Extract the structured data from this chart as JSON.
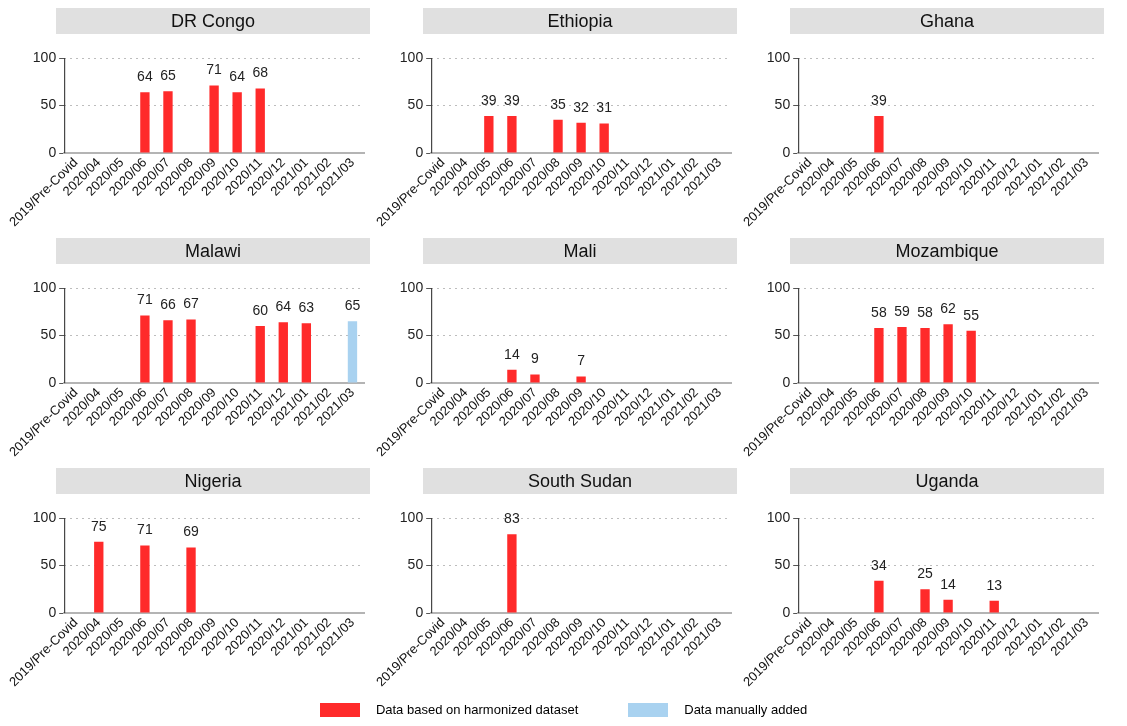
{
  "chart_data": [
    {
      "type": "bar",
      "title": "DR Congo",
      "categories": [
        "2019/Pre-Covid",
        "2020/04",
        "2020/05",
        "2020/06",
        "2020/07",
        "2020/08",
        "2020/09",
        "2020/10",
        "2020/11",
        "2020/12",
        "2021/01",
        "2021/02",
        "2021/03"
      ],
      "ylim": [
        0,
        100
      ],
      "yticks": [
        0,
        50,
        100
      ],
      "grid": "y",
      "data_labels": true,
      "series": [
        {
          "color": "#ff2a2a",
          "values": [
            null,
            null,
            null,
            64,
            65,
            null,
            71,
            64,
            68,
            null,
            null,
            null,
            null
          ]
        }
      ]
    },
    {
      "type": "bar",
      "title": "Ethiopia",
      "categories": [
        "2019/Pre-Covid",
        "2020/04",
        "2020/05",
        "2020/06",
        "2020/07",
        "2020/08",
        "2020/09",
        "2020/10",
        "2020/11",
        "2020/12",
        "2021/01",
        "2021/02",
        "2021/03"
      ],
      "ylim": [
        0,
        100
      ],
      "yticks": [
        0,
        50,
        100
      ],
      "grid": "y",
      "data_labels": true,
      "series": [
        {
          "color": "#ff2a2a",
          "values": [
            null,
            null,
            39,
            39,
            null,
            35,
            32,
            31,
            null,
            null,
            null,
            null,
            null
          ]
        }
      ]
    },
    {
      "type": "bar",
      "title": "Ghana",
      "categories": [
        "2019/Pre-Covid",
        "2020/04",
        "2020/05",
        "2020/06",
        "2020/07",
        "2020/08",
        "2020/09",
        "2020/10",
        "2020/11",
        "2020/12",
        "2021/01",
        "2021/02",
        "2021/03"
      ],
      "ylim": [
        0,
        100
      ],
      "yticks": [
        0,
        50,
        100
      ],
      "grid": "y",
      "data_labels": true,
      "series": [
        {
          "color": "#ff2a2a",
          "values": [
            null,
            null,
            null,
            39,
            null,
            null,
            null,
            null,
            null,
            null,
            null,
            null,
            null
          ]
        }
      ]
    },
    {
      "type": "bar",
      "title": "Malawi",
      "categories": [
        "2019/Pre-Covid",
        "2020/04",
        "2020/05",
        "2020/06",
        "2020/07",
        "2020/08",
        "2020/09",
        "2020/10",
        "2020/11",
        "2020/12",
        "2021/01",
        "2021/02",
        "2021/03"
      ],
      "ylim": [
        0,
        100
      ],
      "yticks": [
        0,
        50,
        100
      ],
      "grid": "y",
      "data_labels": true,
      "legend": "bottom",
      "series": [
        {
          "name": "Data based on harmonized dataset",
          "color": "#ff2a2a",
          "values": [
            null,
            null,
            null,
            71,
            66,
            67,
            null,
            null,
            60,
            64,
            63,
            null,
            null
          ]
        },
        {
          "name": "Data manually added",
          "color": "#a9d2f0",
          "values": [
            null,
            null,
            null,
            null,
            null,
            null,
            null,
            null,
            null,
            null,
            null,
            null,
            65
          ]
        }
      ]
    },
    {
      "type": "bar",
      "title": "Mali",
      "categories": [
        "2019/Pre-Covid",
        "2020/04",
        "2020/05",
        "2020/06",
        "2020/07",
        "2020/08",
        "2020/09",
        "2020/10",
        "2020/11",
        "2020/12",
        "2021/01",
        "2021/02",
        "2021/03"
      ],
      "ylim": [
        0,
        100
      ],
      "yticks": [
        0,
        50,
        100
      ],
      "grid": "y",
      "data_labels": true,
      "series": [
        {
          "color": "#ff2a2a",
          "values": [
            null,
            null,
            null,
            14,
            9,
            null,
            7,
            null,
            null,
            null,
            null,
            null,
            null
          ]
        }
      ]
    },
    {
      "type": "bar",
      "title": "Mozambique",
      "categories": [
        "2019/Pre-Covid",
        "2020/04",
        "2020/05",
        "2020/06",
        "2020/07",
        "2020/08",
        "2020/09",
        "2020/10",
        "2020/11",
        "2020/12",
        "2021/01",
        "2021/02",
        "2021/03"
      ],
      "ylim": [
        0,
        100
      ],
      "yticks": [
        0,
        50,
        100
      ],
      "grid": "y",
      "data_labels": true,
      "series": [
        {
          "color": "#ff2a2a",
          "values": [
            null,
            null,
            null,
            58,
            59,
            58,
            62,
            55,
            null,
            null,
            null,
            null,
            null
          ]
        }
      ]
    },
    {
      "type": "bar",
      "title": "Nigeria",
      "categories": [
        "2019/Pre-Covid",
        "2020/04",
        "2020/05",
        "2020/06",
        "2020/07",
        "2020/08",
        "2020/09",
        "2020/10",
        "2020/11",
        "2020/12",
        "2021/01",
        "2021/02",
        "2021/03"
      ],
      "ylim": [
        0,
        100
      ],
      "yticks": [
        0,
        50,
        100
      ],
      "grid": "y",
      "data_labels": true,
      "series": [
        {
          "color": "#ff2a2a",
          "values": [
            null,
            75,
            null,
            71,
            null,
            69,
            null,
            null,
            null,
            null,
            null,
            null,
            null
          ]
        }
      ]
    },
    {
      "type": "bar",
      "title": "South Sudan",
      "categories": [
        "2019/Pre-Covid",
        "2020/04",
        "2020/05",
        "2020/06",
        "2020/07",
        "2020/08",
        "2020/09",
        "2020/10",
        "2020/11",
        "2020/12",
        "2021/01",
        "2021/02",
        "2021/03"
      ],
      "ylim": [
        0,
        100
      ],
      "yticks": [
        0,
        50,
        100
      ],
      "grid": "y",
      "data_labels": true,
      "series": [
        {
          "color": "#ff2a2a",
          "values": [
            null,
            null,
            null,
            83,
            null,
            null,
            null,
            null,
            null,
            null,
            null,
            null,
            null
          ]
        }
      ]
    },
    {
      "type": "bar",
      "title": "Uganda",
      "categories": [
        "2019/Pre-Covid",
        "2020/04",
        "2020/05",
        "2020/06",
        "2020/07",
        "2020/08",
        "2020/09",
        "2020/10",
        "2020/11",
        "2020/12",
        "2021/01",
        "2021/02",
        "2021/03"
      ],
      "ylim": [
        0,
        100
      ],
      "yticks": [
        0,
        50,
        100
      ],
      "grid": "y",
      "data_labels": true,
      "series": [
        {
          "color": "#ff2a2a",
          "values": [
            null,
            null,
            null,
            34,
            null,
            25,
            14,
            null,
            13,
            null,
            null,
            null,
            null
          ]
        }
      ]
    }
  ]
}
